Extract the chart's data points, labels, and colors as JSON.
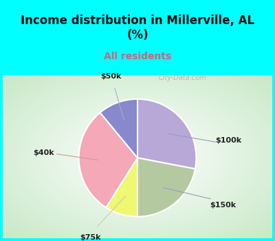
{
  "title": "Income distribution in Millerville, AL\n(%)",
  "subtitle": "All residents",
  "title_color": "#111111",
  "subtitle_color": "#cc6677",
  "slices": [
    {
      "label": "$100k",
      "value": 28,
      "color": "#b8a8d8"
    },
    {
      "label": "$150k",
      "value": 22,
      "color": "#b5c9a0"
    },
    {
      "label": "$75k",
      "value": 9,
      "color": "#eef870"
    },
    {
      "label": "$40k",
      "value": 30,
      "color": "#f4a8b8"
    },
    {
      "label": "$50k",
      "value": 11,
      "color": "#8888cc"
    }
  ],
  "bg_cyan": "#00ffff",
  "bg_box_color": "#c8e8c8",
  "label_color": "#222222",
  "line_color": "#cc9999",
  "watermark": "City-Data.com",
  "title_fontsize": 12,
  "subtitle_fontsize": 10,
  "label_fontsize": 8
}
